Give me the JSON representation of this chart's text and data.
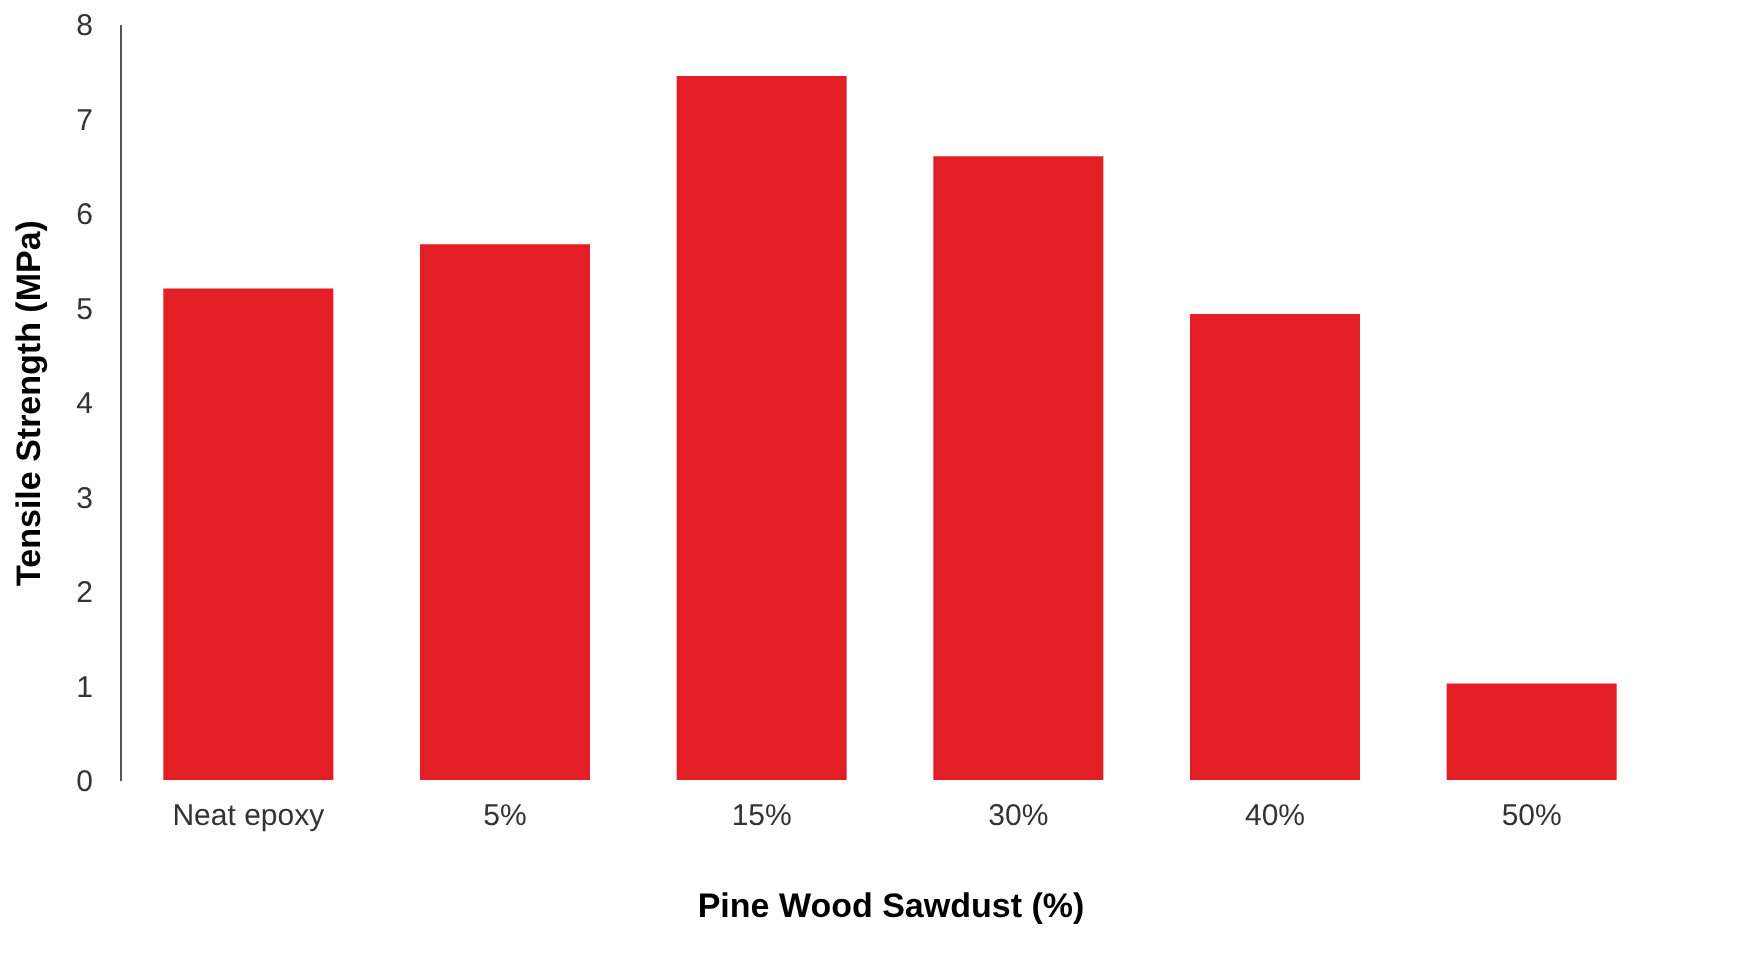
{
  "chart_data": {
    "type": "bar",
    "xlabel": "Pine Wood Sawdust (%)",
    "ylabel": "Tensile Strength (MPa)",
    "categories": [
      "Neat epoxy",
      "5%",
      "15%",
      "30%",
      "40%",
      "50%"
    ],
    "values": [
      5.2,
      5.67,
      7.45,
      6.6,
      4.93,
      1.02
    ],
    "color": "#e31e24",
    "ylim": [
      0,
      8
    ],
    "yticks": [
      0,
      1,
      2,
      3,
      4,
      5,
      6,
      7,
      8
    ],
    "grid": false
  }
}
